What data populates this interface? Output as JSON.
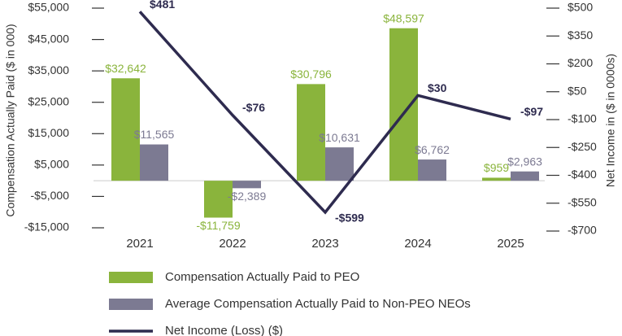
{
  "chart_data": {
    "type": "bar",
    "categories": [
      "2021",
      "2022",
      "2023",
      "2024",
      "2025"
    ],
    "ylabel": "Compensation Actually Paid ($ in 000)",
    "y2label": "Net Income in ($ in 0000s)",
    "ylim": [
      -15000,
      55000
    ],
    "yticks": [
      {
        "value": 55000,
        "label": "$55,000"
      },
      {
        "value": 45000,
        "label": "$45,000"
      },
      {
        "value": 35000,
        "label": "$35,000"
      },
      {
        "value": 25000,
        "label": "$25,000"
      },
      {
        "value": 15000,
        "label": "$15,000"
      },
      {
        "value": 5000,
        "label": "$5,000"
      },
      {
        "value": -5000,
        "label": "-$5,000"
      },
      {
        "value": -15000,
        "label": "-$15,000"
      }
    ],
    "y2lim": [
      -700,
      500
    ],
    "y2ticks": [
      {
        "value": 500,
        "label": "$500"
      },
      {
        "value": 350,
        "label": "$350"
      },
      {
        "value": 200,
        "label": "$200"
      },
      {
        "value": 50,
        "label": "$50"
      },
      {
        "value": -100,
        "label": "-$100"
      },
      {
        "value": -250,
        "label": "-$250"
      },
      {
        "value": -400,
        "label": "-$400"
      },
      {
        "value": -550,
        "label": "-$550"
      },
      {
        "value": -700,
        "label": "-$700"
      }
    ],
    "series": [
      {
        "name": "Compensation Actually Paid to PEO",
        "color": "#8ab43c",
        "values": [
          32642,
          -11759,
          30796,
          48597,
          959
        ],
        "value_labels": [
          "$32,642",
          "-$11,759",
          "$30,796",
          "$48,597",
          "$959"
        ]
      },
      {
        "name": "Average Compensation Actually Paid to Non-PEO NEOs",
        "color": "#7c7a92",
        "values": [
          11565,
          -2389,
          10631,
          6762,
          2963
        ],
        "value_labels": [
          "$11,565",
          "-$2,389",
          "$10,631",
          "$6,762",
          "$2,963"
        ]
      },
      {
        "name": "Net Income (Loss) ($)",
        "color": "#2e2b4f",
        "type": "line",
        "axis": "y2",
        "values": [
          481,
          -76,
          -599,
          30,
          -97
        ],
        "value_labels": [
          "$481",
          "-$76",
          "-$599",
          "$30",
          "-$97"
        ]
      }
    ]
  }
}
